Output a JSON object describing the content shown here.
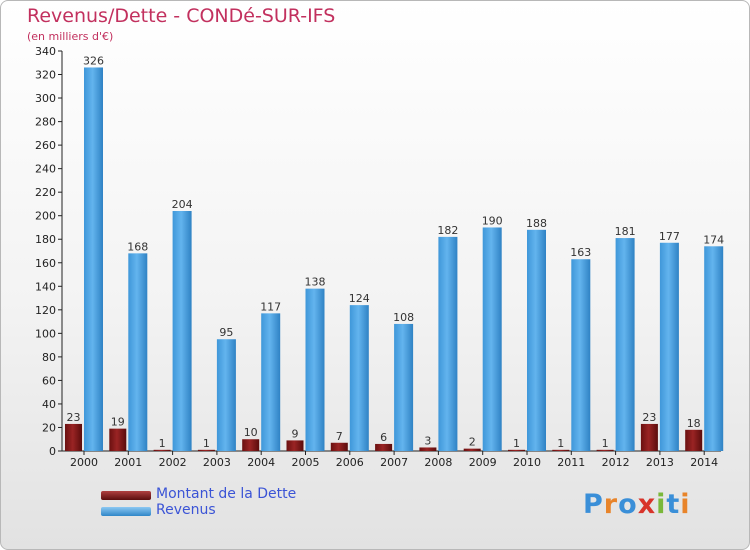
{
  "title": "Revenus/Dette - CONDé-SUR-IFS",
  "subtitle": "(en milliers d'€)",
  "logo": "Proxiti",
  "colors": {
    "title": "#c2305e",
    "debt": "#7a1414",
    "revenue": "#4aa3e3",
    "legend_text": "#3b54d6"
  },
  "legend": [
    {
      "label": "Montant de la Dette",
      "color": "#7a1414"
    },
    {
      "label": "Revenus",
      "color": "#4aa3e3"
    }
  ],
  "chart_data": {
    "type": "bar",
    "title": "Revenus/Dette - CONDé-SUR-IFS",
    "ylabel": "(en milliers d'€)",
    "categories": [
      "2000",
      "2001",
      "2002",
      "2003",
      "2004",
      "2005",
      "2006",
      "2007",
      "2008",
      "2009",
      "2010",
      "2011",
      "2012",
      "2013",
      "2014"
    ],
    "series": [
      {
        "name": "Montant de la Dette",
        "values": [
          23,
          19,
          1,
          1,
          10,
          9,
          7,
          6,
          3,
          2,
          1,
          1,
          1,
          23,
          18
        ]
      },
      {
        "name": "Revenus",
        "values": [
          326,
          168,
          204,
          95,
          117,
          138,
          124,
          108,
          182,
          190,
          188,
          163,
          181,
          177,
          174
        ]
      }
    ],
    "ylim": [
      0,
      340
    ],
    "yticks": [
      0,
      20,
      40,
      60,
      80,
      100,
      120,
      140,
      160,
      180,
      200,
      220,
      240,
      260,
      280,
      300,
      320,
      340
    ],
    "grid": false,
    "legend_position": "bottom-left"
  }
}
